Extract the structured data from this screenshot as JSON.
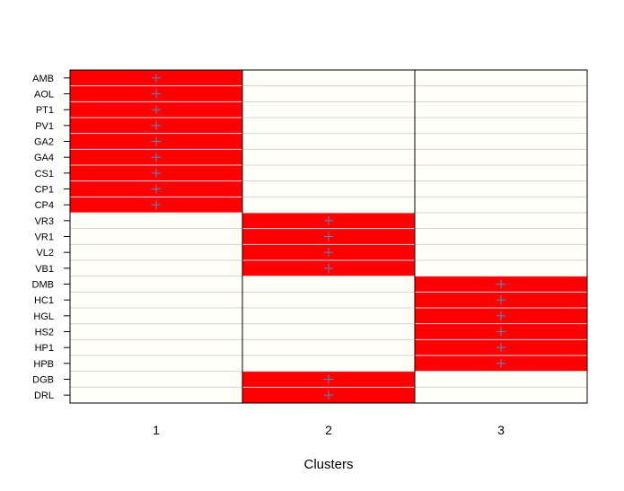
{
  "chart_data": {
    "type": "heatmap",
    "title": "",
    "xlabel": "Clusters",
    "ylabel": "",
    "columns": [
      "1",
      "2",
      "3"
    ],
    "rows": [
      "AMB",
      "AOL",
      "PT1",
      "PV1",
      "GA2",
      "GA4",
      "CS1",
      "CP1",
      "CP4",
      "VR3",
      "VR1",
      "VL2",
      "VB1",
      "DMB",
      "HC1",
      "HGL",
      "HS2",
      "HP1",
      "HPB",
      "DGB",
      "DRL"
    ],
    "assignments": [
      1,
      1,
      1,
      1,
      1,
      1,
      1,
      1,
      1,
      2,
      2,
      2,
      2,
      3,
      3,
      3,
      3,
      3,
      3,
      2,
      2
    ],
    "marker": "+",
    "grid": true,
    "colors": {
      "member": "#ff0000",
      "background": "#fffff8",
      "row_line": "#d3d3d3",
      "marker": "#4f8ec9",
      "frame": "#000000"
    }
  }
}
